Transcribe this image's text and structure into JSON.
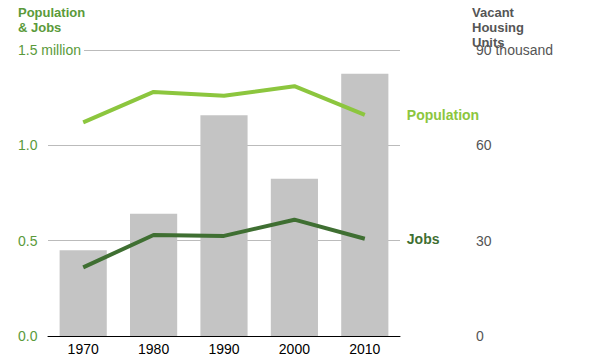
{
  "chart_data": {
    "type": "bar",
    "ylabel": "Population & Jobs",
    "y2label": "Vacant Housing Units",
    "categories": [
      "1970",
      "1980",
      "1990",
      "2000",
      "2010"
    ],
    "series": [
      {
        "name": "Vacant Housing Units",
        "type": "bar",
        "axis": "y2",
        "color": "#c4c4c4",
        "values": [
          27,
          38.5,
          69.5,
          49.5,
          82.5
        ]
      },
      {
        "name": "Population",
        "type": "line",
        "color": "#8cc63e",
        "values": [
          1.12,
          1.28,
          1.26,
          1.31,
          1.16
        ]
      },
      {
        "name": "Jobs",
        "type": "line",
        "color": "#3f6f32",
        "values": [
          0.36,
          0.53,
          0.525,
          0.61,
          0.51
        ]
      }
    ],
    "ylim": [
      0,
      1.5
    ],
    "yticks": [
      {
        "value": 0,
        "label": "0.0"
      },
      {
        "value": 0.5,
        "label": "0.5"
      },
      {
        "value": 1,
        "label": "1.0"
      },
      {
        "value": 1.5,
        "label": "1.5 million"
      }
    ],
    "y2lim": [
      0,
      90
    ],
    "y2ticks": [
      0,
      30,
      60,
      {
        "value": 90,
        "label": "90 thousand"
      }
    ],
    "grid": true
  }
}
